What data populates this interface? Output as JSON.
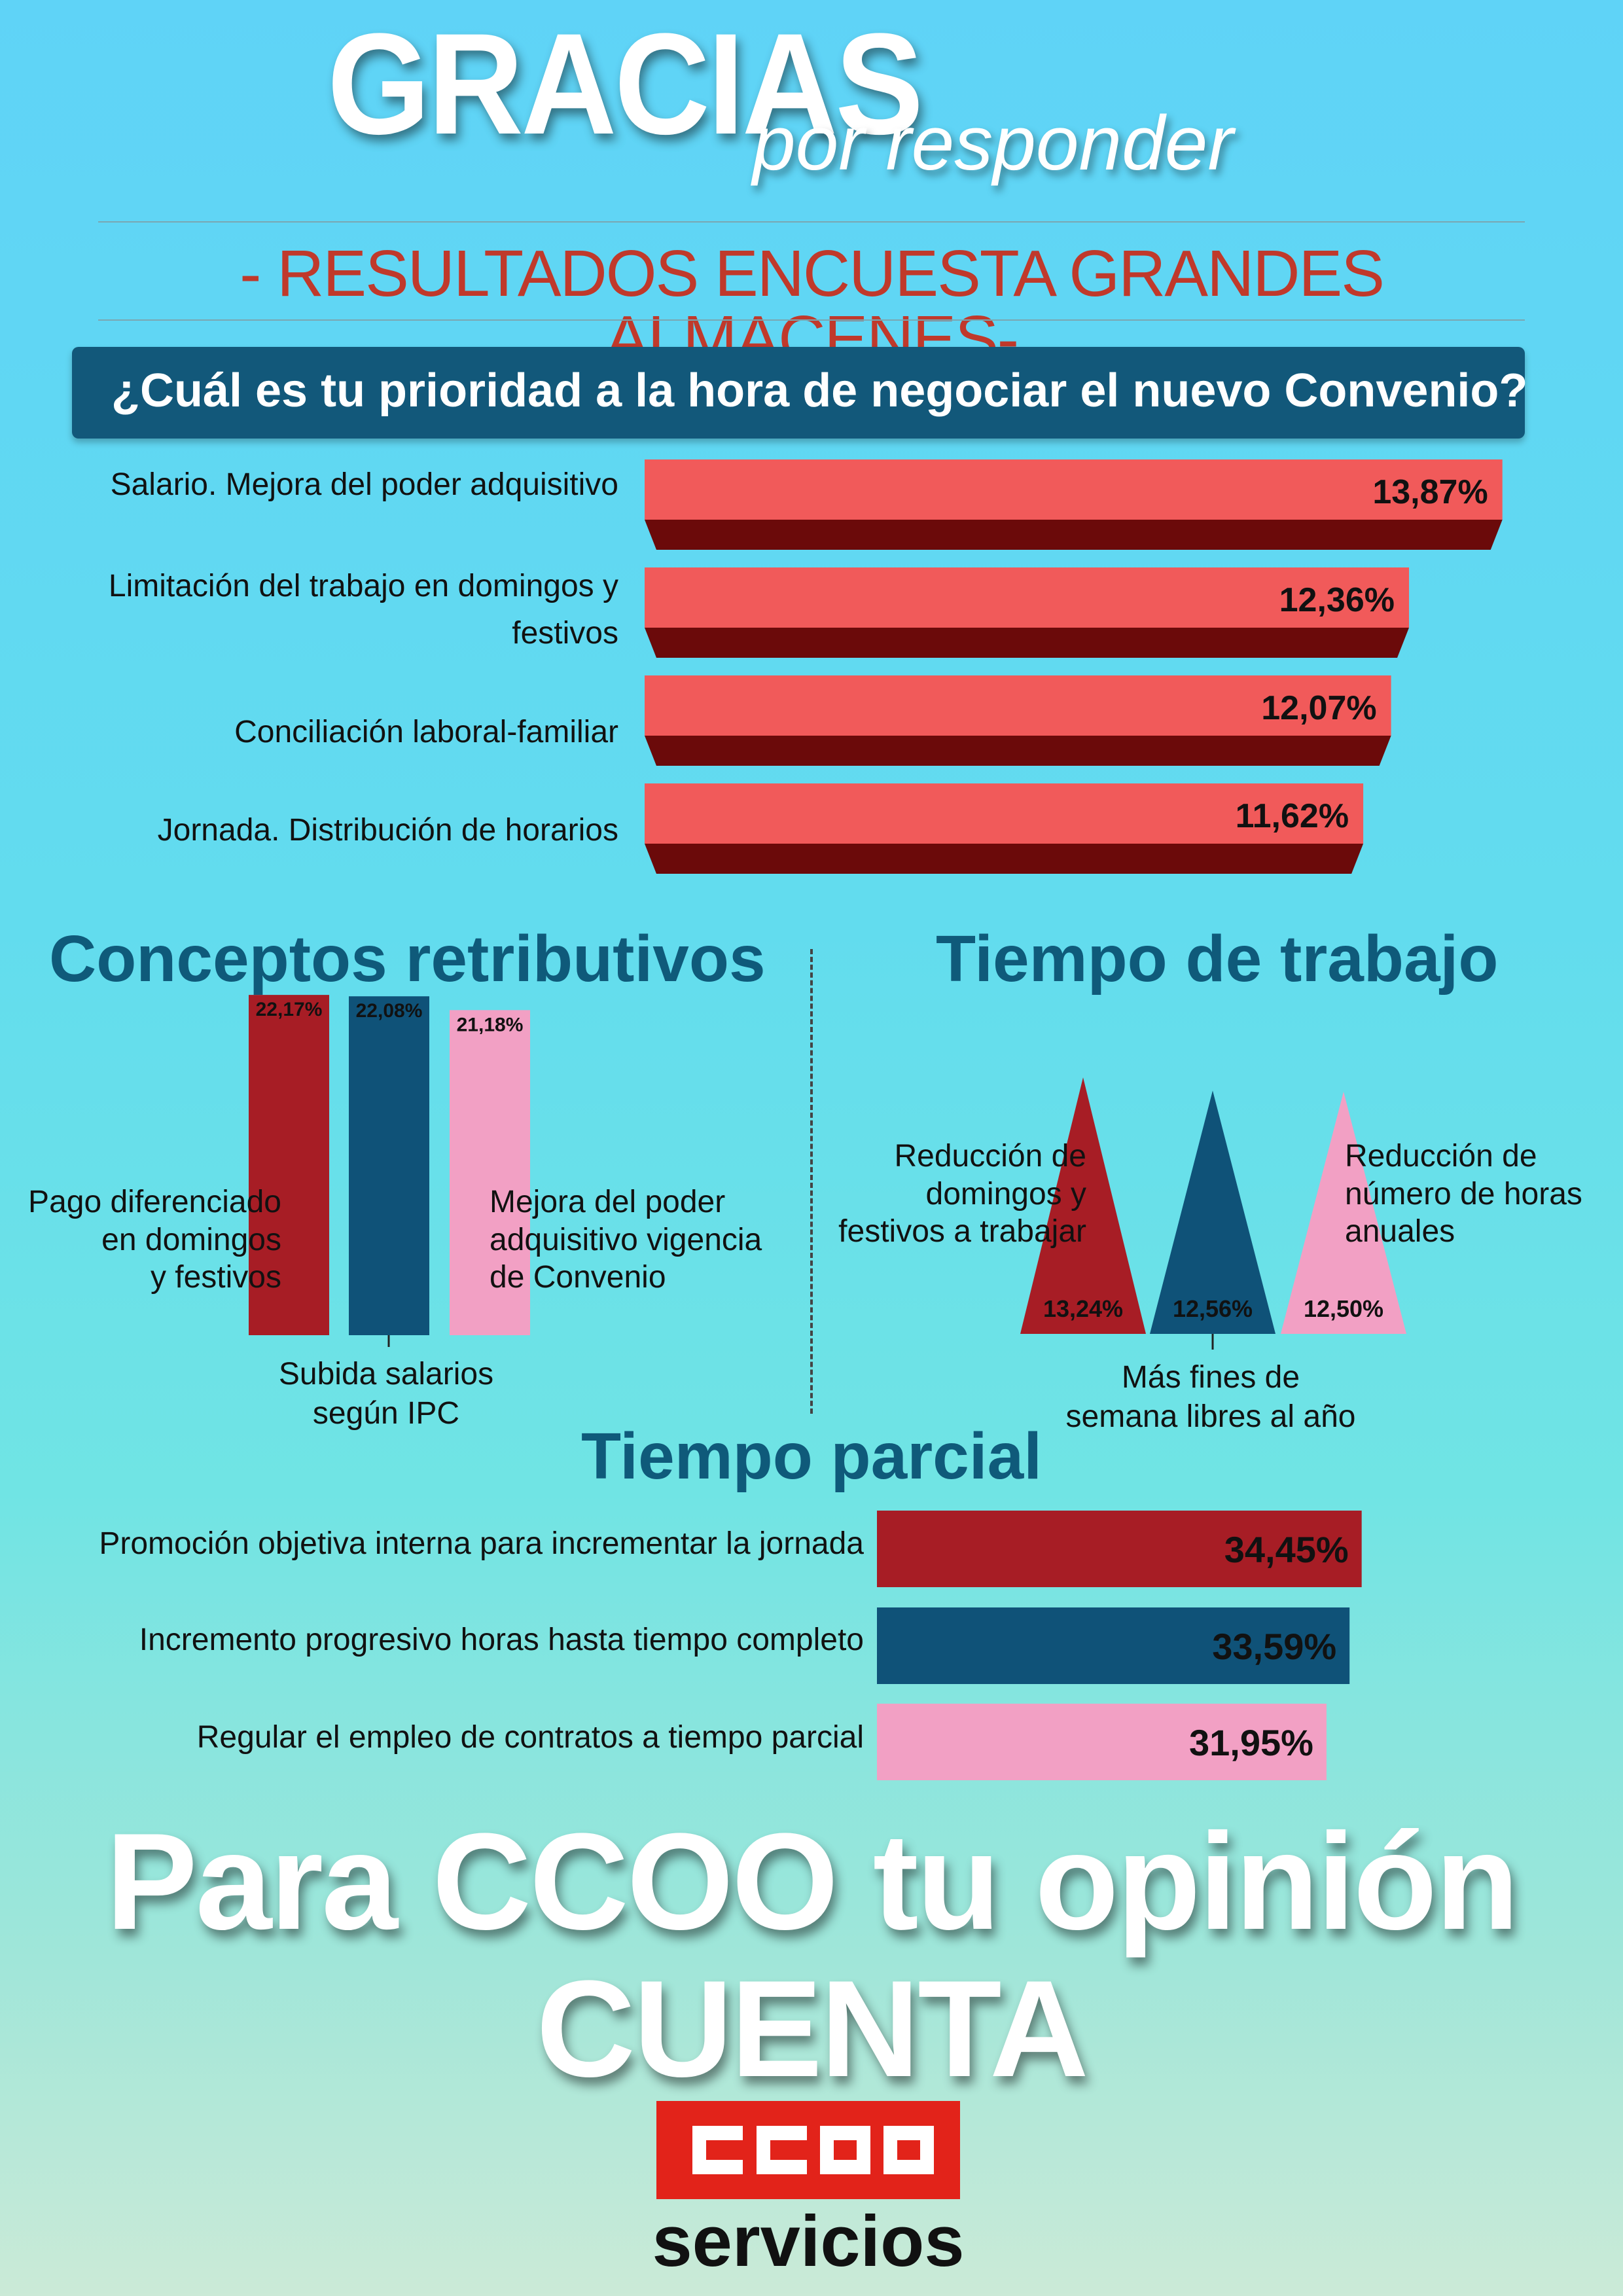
{
  "header": {
    "title": "GRACIAS",
    "subtitle": "por responder",
    "survey_title": "- RESULTADOS ENCUESTA GRANDES ALMACENES-"
  },
  "colors": {
    "background_top": "#5fd3f7",
    "banner": "#12587a",
    "bar_red_top": "#f15a5a",
    "bar_red_side": "#6b0a0a",
    "dark_red": "#a71d25",
    "navy": "#0f5278",
    "pink": "#f2a0c4",
    "logo_red": "#e2231a"
  },
  "priority_section": {
    "question": "¿Cuál es tu prioridad a la hora de negociar el nuevo Convenio?",
    "items": [
      {
        "label_lines": [
          "Salario. Mejora del poder adquisitivo"
        ],
        "value_label": "13,87%"
      },
      {
        "label_lines": [
          "Limitación del trabajo en domingos y",
          "festivos"
        ],
        "value_label": "12,36%"
      },
      {
        "label_lines": [
          "Conciliación laboral-familiar"
        ],
        "value_label": "12,07%"
      },
      {
        "label_lines": [
          "Jornada. Distribución de horarios"
        ],
        "value_label": "11,62%"
      }
    ]
  },
  "conceptos": {
    "title": "Conceptos retributivos",
    "label_left_lines": [
      "Pago diferenciado",
      "en domingos",
      "y festivos"
    ],
    "label_bottom_lines": [
      "Subida salarios",
      "según IPC"
    ],
    "label_right_lines": [
      "Mejora del poder",
      "adquisitivo vigencia",
      "de Convenio"
    ],
    "value_labels": [
      "22,17%",
      "22,08%",
      "21,18%"
    ]
  },
  "tiempo_trabajo": {
    "title": "Tiempo de trabajo",
    "label_left_lines": [
      "Reducción de",
      "domingos y",
      "festivos a trabajar"
    ],
    "label_bottom_lines": [
      "Más fines de",
      "semana libres al año"
    ],
    "label_right_lines": [
      "Reducción de",
      "número de horas",
      "anuales"
    ],
    "value_labels": [
      "13,24%",
      "12,56%",
      "12,50%"
    ]
  },
  "tiempo_parcial": {
    "title": "Tiempo parcial",
    "labels": [
      "Promoción objetiva interna para incrementar la jornada",
      "Incremento progresivo horas hasta tiempo completo",
      "Regular el empleo de contratos a tiempo parcial"
    ],
    "value_labels": [
      "34,45%",
      "33,59%",
      "31,95%"
    ]
  },
  "footer": {
    "line1": "Para CCOO tu opinión",
    "line2": "CUENTA",
    "logo_text": "CCOO",
    "logo_sub": "servicios"
  },
  "chart_data": [
    {
      "type": "bar",
      "orientation": "horizontal",
      "title": "¿Cuál es tu prioridad a la hora de negociar el nuevo Convenio?",
      "categories": [
        "Salario. Mejora del poder adquisitivo",
        "Limitación del trabajo en domingos y festivos",
        "Conciliación laboral-familiar",
        "Jornada. Distribución de horarios"
      ],
      "values": [
        13.87,
        12.36,
        12.07,
        11.62
      ],
      "unit": "%"
    },
    {
      "type": "bar",
      "orientation": "vertical",
      "title": "Conceptos retributivos",
      "categories": [
        "Pago diferenciado en domingos y festivos",
        "Subida salarios según IPC",
        "Mejora del poder adquisitivo vigencia de Convenio"
      ],
      "values": [
        22.17,
        22.08,
        21.18
      ],
      "unit": "%"
    },
    {
      "type": "bar",
      "orientation": "vertical",
      "shape": "triangle",
      "title": "Tiempo de trabajo",
      "categories": [
        "Reducción de domingos y festivos a trabajar",
        "Más fines de semana libres al año",
        "Reducción de número de horas anuales"
      ],
      "values": [
        13.24,
        12.56,
        12.5
      ],
      "unit": "%"
    },
    {
      "type": "bar",
      "orientation": "horizontal",
      "title": "Tiempo parcial",
      "categories": [
        "Promoción objetiva interna para incrementar la jornada",
        "Incremento progresivo horas hasta tiempo completo",
        "Regular el empleo de contratos a tiempo parcial"
      ],
      "values": [
        34.45,
        33.59,
        31.95
      ],
      "unit": "%"
    }
  ]
}
